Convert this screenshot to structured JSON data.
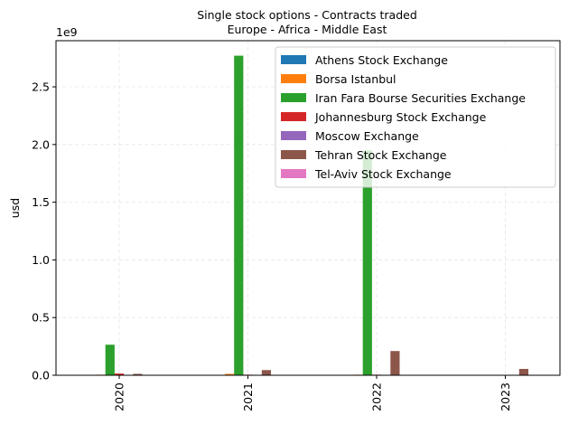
{
  "chart_data": {
    "type": "bar",
    "title": "Single stock options - Contracts traded",
    "subtitle": "Europe - Africa - Middle East",
    "xlabel": "",
    "ylabel": "usd",
    "y_offset_label": "1e9",
    "y_scale": 1000000000,
    "ylim": [
      0,
      2900000000
    ],
    "yticks": [
      0,
      500000000,
      1000000000,
      1500000000,
      2000000000,
      2500000000
    ],
    "ytick_labels": [
      "0.0",
      "0.5",
      "1.0",
      "1.5",
      "2.0",
      "2.5"
    ],
    "grid": true,
    "legend_position": "top-right",
    "categories": [
      "2020",
      "2021",
      "2022",
      "2023"
    ],
    "series": [
      {
        "name": "Athens Stock Exchange",
        "color": "#1f77b4",
        "values": [
          0,
          0,
          0,
          0
        ]
      },
      {
        "name": "Borsa Istanbul",
        "color": "#ff7f0e",
        "values": [
          5000000,
          12000000,
          5000000,
          0
        ]
      },
      {
        "name": "Iran Fara Bourse Securities Exchange",
        "color": "#2ca02c",
        "values": [
          265000000,
          2770000000,
          1950000000,
          0
        ]
      },
      {
        "name": "Johannesburg Stock Exchange",
        "color": "#d62728",
        "values": [
          15000000,
          5000000,
          5000000,
          0
        ]
      },
      {
        "name": "Moscow Exchange",
        "color": "#9467bd",
        "values": [
          3000000,
          2000000,
          2000000,
          0
        ]
      },
      {
        "name": "Tehran Stock Exchange",
        "color": "#8c564b",
        "values": [
          12000000,
          45000000,
          210000000,
          55000000
        ]
      },
      {
        "name": "Tel-Aviv Stock Exchange",
        "color": "#e377c2",
        "values": [
          0,
          0,
          0,
          0
        ]
      }
    ]
  }
}
